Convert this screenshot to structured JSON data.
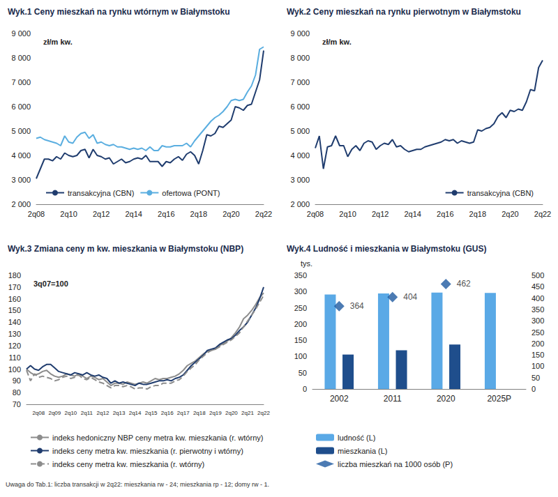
{
  "chart_data": [
    {
      "type": "line",
      "title": "Wyk.1 Ceny mieszkań na rynku wtórnym w Białymstoku",
      "annotations": [
        "zł/m kw."
      ],
      "categories": [
        "2q08",
        null,
        null,
        null,
        null,
        null,
        null,
        null,
        "2q10",
        null,
        null,
        null,
        null,
        null,
        null,
        null,
        "2q12",
        null,
        null,
        null,
        null,
        null,
        null,
        null,
        "2q14",
        null,
        null,
        null,
        null,
        null,
        null,
        null,
        "2q16",
        null,
        null,
        null,
        null,
        null,
        null,
        null,
        "2q18",
        null,
        null,
        null,
        null,
        null,
        null,
        null,
        "2q20",
        null,
        null,
        null,
        null,
        null,
        null,
        null,
        "2q22"
      ],
      "series": [
        {
          "name": "transakcyjna (CBN)",
          "color": "#1f3c6e",
          "values": [
            3050,
            3450,
            3850,
            3850,
            3780,
            3950,
            3850,
            4100,
            4000,
            3950,
            4000,
            4200,
            4250,
            3900,
            4250,
            4000,
            3950,
            3850,
            3900,
            3650,
            3750,
            3850,
            3700,
            3750,
            3850,
            3900,
            3850,
            4000,
            3750,
            3750,
            3750,
            3550,
            3750,
            3700,
            3850,
            3950,
            3800,
            4050,
            4150,
            4000,
            3650,
            4200,
            4850,
            4800,
            4900,
            5200,
            5150,
            5300,
            5450,
            6000,
            5950,
            5850,
            6050,
            6100,
            6600,
            7100,
            8300
          ]
        },
        {
          "name": "ofertowa (PONT)",
          "color": "#5aaee0",
          "values": [
            4700,
            4750,
            4650,
            4600,
            4550,
            4500,
            4400,
            4800,
            4550,
            4500,
            4750,
            4900,
            4950,
            4700,
            4850,
            4500,
            4550,
            4450,
            4400,
            4450,
            4350,
            4350,
            4300,
            4250,
            4300,
            4250,
            4300,
            4200,
            4350,
            4200,
            4200,
            4400,
            4350,
            4350,
            4400,
            4400,
            4400,
            4500,
            4350,
            4600,
            4800,
            5000,
            5200,
            5400,
            5550,
            5650,
            5800,
            6000,
            6250,
            6300,
            6250,
            6300,
            6600,
            6850,
            7300,
            8350,
            8450
          ]
        }
      ],
      "ylim": [
        2000,
        9000
      ],
      "yticks": [
        {
          "value": 2000,
          "label": "2 000"
        },
        {
          "value": 3000,
          "label": "3 000"
        },
        {
          "value": 4000,
          "label": "4 000"
        },
        {
          "value": 5000,
          "label": "5 000"
        },
        {
          "value": 6000,
          "label": "6 000"
        },
        {
          "value": 7000,
          "label": "7 000"
        },
        {
          "value": 8000,
          "label": "8 000"
        },
        {
          "value": 9000,
          "label": "9 000"
        }
      ],
      "grid": false,
      "legend": "lower left"
    },
    {
      "type": "line",
      "title": "Wyk.2 Ceny mieszkań na rynku pierwotnym w Białymstoku",
      "annotations": [
        "zł/m kw."
      ],
      "categories": [
        "2q08",
        null,
        null,
        null,
        null,
        null,
        null,
        null,
        "2q10",
        null,
        null,
        null,
        null,
        null,
        null,
        null,
        "2q12",
        null,
        null,
        null,
        null,
        null,
        null,
        null,
        "2q14",
        null,
        null,
        null,
        null,
        null,
        null,
        null,
        "2q16",
        null,
        null,
        null,
        null,
        null,
        null,
        null,
        "2q18",
        null,
        null,
        null,
        null,
        null,
        null,
        null,
        "2q20",
        null,
        null,
        null,
        null,
        null,
        null,
        null,
        "2q22"
      ],
      "series": [
        {
          "name": "transakcyjna (CBN)",
          "color": "#1f3c6e",
          "values": [
            4300,
            4800,
            3450,
            4350,
            4400,
            4800,
            4400,
            4400,
            3950,
            4250,
            4400,
            4200,
            4500,
            4600,
            4550,
            4250,
            4400,
            4500,
            4450,
            4650,
            4350,
            4400,
            4250,
            4150,
            4200,
            4250,
            4250,
            4350,
            4400,
            4450,
            4500,
            4550,
            4650,
            4600,
            4650,
            4500,
            4600,
            4550,
            4500,
            4550,
            5050,
            5000,
            5100,
            5150,
            5300,
            5600,
            5750,
            5550,
            5850,
            5800,
            5900,
            5850,
            6200,
            6700,
            6650,
            7600,
            7900
          ]
        }
      ],
      "ylim": [
        2000,
        9000
      ],
      "yticks": [
        {
          "value": 2000,
          "label": "2 000"
        },
        {
          "value": 3000,
          "label": "3 000"
        },
        {
          "value": 4000,
          "label": "4 000"
        },
        {
          "value": 5000,
          "label": "5 000"
        },
        {
          "value": 6000,
          "label": "6 000"
        },
        {
          "value": 7000,
          "label": "7 000"
        },
        {
          "value": 8000,
          "label": "8 000"
        },
        {
          "value": 9000,
          "label": "9 000"
        }
      ],
      "grid": false,
      "legend": "lower right"
    },
    {
      "type": "line",
      "title": "Wyk.3 Zmiana ceny m kw. mieszkania w Białymstoku (NBP)",
      "annotations": [
        "3q07=100"
      ],
      "categories": [
        null,
        null,
        null,
        "2q08",
        null,
        null,
        null,
        "2q09",
        null,
        null,
        null,
        "2q10",
        null,
        null,
        null,
        "2q11",
        null,
        null,
        null,
        "2q12",
        null,
        null,
        null,
        "2q13",
        null,
        null,
        null,
        "2q14",
        null,
        null,
        null,
        "2q15",
        null,
        null,
        null,
        "2q16",
        null,
        null,
        null,
        "2q17",
        null,
        null,
        null,
        "2q18",
        null,
        null,
        null,
        "2q19",
        null,
        null,
        null,
        "2q20",
        null,
        null,
        null,
        "2q21",
        null,
        null,
        null,
        "2q22"
      ],
      "series": [
        {
          "name": "indeks hedoniczny NBP ceny metra kw. mieszkania (r. wtórny)",
          "color": "#8c8c8c",
          "line_style": "solid",
          "values": [
            100,
            97,
            95,
            96,
            98,
            99,
            96,
            94,
            93,
            94,
            96,
            95,
            94,
            96,
            94,
            92,
            94,
            93,
            91,
            92,
            89,
            86,
            88,
            88,
            87,
            89,
            88,
            87,
            88,
            89,
            88,
            90,
            92,
            91,
            92,
            92,
            93,
            94,
            96,
            99,
            103,
            105,
            107,
            110,
            113,
            115,
            116,
            117,
            120,
            122,
            124,
            127,
            131,
            136,
            143,
            146,
            150,
            155,
            161,
            165
          ]
        },
        {
          "name": "indeks ceny metra kw. mieszkania (r. pierwotny i wtórny)",
          "color": "#1f3c6e",
          "line_style": "solid",
          "values": [
            100,
            103,
            100,
            99,
            102,
            104,
            104,
            101,
            98,
            97,
            96,
            95,
            97,
            96,
            95,
            97,
            95,
            94,
            95,
            93,
            92,
            88,
            90,
            88,
            89,
            88,
            87,
            86,
            88,
            87,
            87,
            88,
            89,
            90,
            90,
            91,
            90,
            92,
            93,
            95,
            99,
            103,
            106,
            109,
            112,
            116,
            117,
            118,
            121,
            123,
            125,
            126,
            129,
            133,
            136,
            140,
            146,
            152,
            160,
            170
          ]
        },
        {
          "name": "indeks ceny metra kw. mieszkania (r. wtórny)",
          "color": "#8c8c8c",
          "line_style": "dashed",
          "values": [
            99,
            90,
            96,
            93,
            94,
            93,
            92,
            90,
            91,
            93,
            94,
            92,
            93,
            95,
            92,
            91,
            93,
            91,
            89,
            88,
            86,
            84,
            86,
            86,
            85,
            86,
            85,
            83,
            84,
            84,
            83,
            85,
            86,
            86,
            88,
            88,
            88,
            90,
            91,
            94,
            98,
            101,
            104,
            108,
            111,
            114,
            116,
            117,
            119,
            121,
            123,
            125,
            128,
            131,
            136,
            141,
            146,
            151,
            157,
            163
          ]
        }
      ],
      "ylim": [
        70,
        180
      ],
      "yticks": [
        70,
        80,
        90,
        100,
        110,
        120,
        130,
        140,
        150,
        160,
        170,
        180
      ],
      "grid": false,
      "legend": "bottom"
    },
    {
      "type": "bar",
      "title": "Wyk.4 Ludność i mieszkania w Białymstoku (GUS)",
      "ylabel": "tys.",
      "categories": [
        "2002",
        "2011",
        "2020",
        "2025P"
      ],
      "series": [
        {
          "name": "ludność (L)",
          "type": "bar",
          "color": "#5aa9e6",
          "values": [
            291,
            294,
            297,
            296
          ]
        },
        {
          "name": "mieszkania (L)",
          "type": "bar",
          "color": "#1f4e8c",
          "values": [
            106,
            119,
            137,
            null
          ]
        },
        {
          "name": "liczba mieszkań na 1000 osób (P)",
          "type": "scatter",
          "axis": "y2",
          "marker": "diamond",
          "data_labels": true,
          "color": "#1f5aa0",
          "values": [
            364,
            404,
            462,
            null
          ]
        }
      ],
      "ylim": [
        0,
        350
      ],
      "yticks": [
        0,
        50,
        100,
        150,
        200,
        250,
        300,
        350
      ],
      "y2lim": [
        0,
        500
      ],
      "y2ticks": [
        0,
        50,
        100,
        150,
        200,
        250,
        300,
        350,
        400,
        450,
        500
      ],
      "grid": false,
      "legend": "bottom"
    }
  ],
  "footnote": "Uwaga do Tab.1: liczba transakcji w 2q22: mieszkania rw - 24; mieszkania rp - 12; domy rw - 1."
}
